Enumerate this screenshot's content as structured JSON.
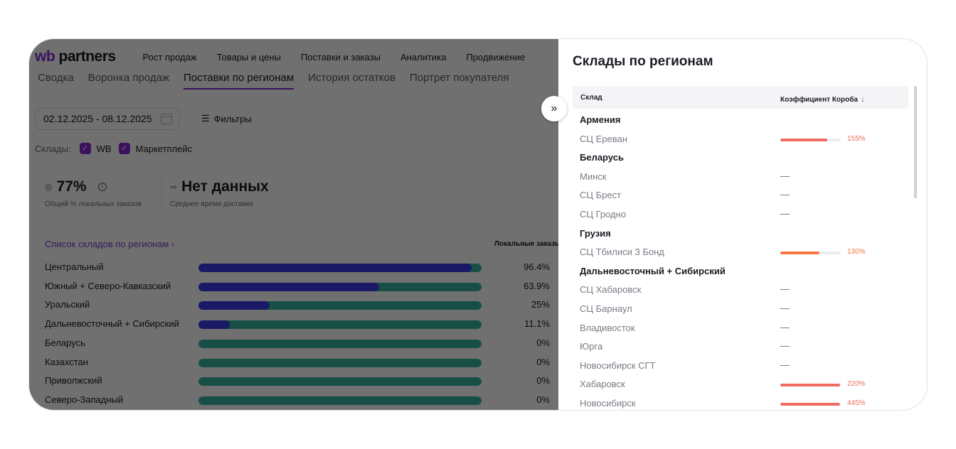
{
  "header": {
    "logo_wb": "wb",
    "logo_partners": "partners",
    "menu": [
      "Рост продаж",
      "Товары и цены",
      "Поставки и заказы",
      "Аналитика",
      "Продвижение"
    ]
  },
  "subnav": {
    "tabs": [
      "Сводка",
      "Воронка продаж",
      "Поставки по регионам",
      "История остатков",
      "Портрет покупателя"
    ],
    "active": "Поставки по регионам"
  },
  "filters": {
    "date_range": "02.12.2025 - 08.12.2025",
    "filters_label": "Фильтры",
    "stores_label": "Склады:",
    "store_options": [
      "WB",
      "Маркетплейс"
    ]
  },
  "metrics": {
    "local_share_value": "77%",
    "local_share_label": "Общий % локальных заказов",
    "delivery_value": "Нет данных",
    "delivery_label": "Среднее время доставки"
  },
  "regions": {
    "link_label": "Список складов по регионам",
    "link_chevron": "›",
    "column_local": "Локальные заказы",
    "rows": [
      {
        "name": "Центральный",
        "pct": "96.4%",
        "value": 96.4
      },
      {
        "name": "Южный + Северо-Кавказский",
        "pct": "63.9%",
        "value": 63.9
      },
      {
        "name": "Уральский",
        "pct": "25%",
        "value": 25
      },
      {
        "name": "Дальневосточный + Сибирский",
        "pct": "11.1%",
        "value": 11.1
      },
      {
        "name": "Беларусь",
        "pct": "0%",
        "value": 0
      },
      {
        "name": "Казахстан",
        "pct": "0%",
        "value": 0
      },
      {
        "name": "Приволжский",
        "pct": "0%",
        "value": 0
      },
      {
        "name": "Северо-Западный",
        "pct": "0%",
        "value": 0
      }
    ]
  },
  "panel": {
    "title": "Склады по регионам",
    "col_store": "Склад",
    "col_coef": "Коэффициент Короба",
    "sort_icon": "↓",
    "rows": [
      {
        "type": "group",
        "name": "Армения"
      },
      {
        "type": "item",
        "name": "СЦ Ереван",
        "coef": "155%",
        "fill": 0.78,
        "color": "#ef6b62"
      },
      {
        "type": "group",
        "name": "Беларусь"
      },
      {
        "type": "item",
        "name": "Минск",
        "coef": "—"
      },
      {
        "type": "item",
        "name": "СЦ Брест",
        "coef": "—"
      },
      {
        "type": "item",
        "name": "СЦ Гродно",
        "coef": "—"
      },
      {
        "type": "group",
        "name": "Грузия"
      },
      {
        "type": "item",
        "name": "СЦ Тбилиси 3 Бонд",
        "coef": "130%",
        "fill": 0.65,
        "color": "#f5793f"
      },
      {
        "type": "group",
        "name": "Дальневосточный + Сибирский"
      },
      {
        "type": "item",
        "name": "СЦ Хабаровск",
        "coef": "—"
      },
      {
        "type": "item",
        "name": "СЦ Барнаул",
        "coef": "—"
      },
      {
        "type": "item",
        "name": "Владивосток",
        "coef": "—"
      },
      {
        "type": "item",
        "name": "Юрга",
        "coef": "—"
      },
      {
        "type": "item",
        "name": "Новосибирск СГТ",
        "coef": "—"
      },
      {
        "type": "item",
        "name": "Хабаровск",
        "coef": "220%",
        "fill": 1.0,
        "color": "#ef6b62"
      },
      {
        "type": "item",
        "name": "Новосибирск",
        "coef": "445%",
        "fill": 1.0,
        "color": "#ef6b62"
      }
    ]
  },
  "toggle_icon": "»"
}
